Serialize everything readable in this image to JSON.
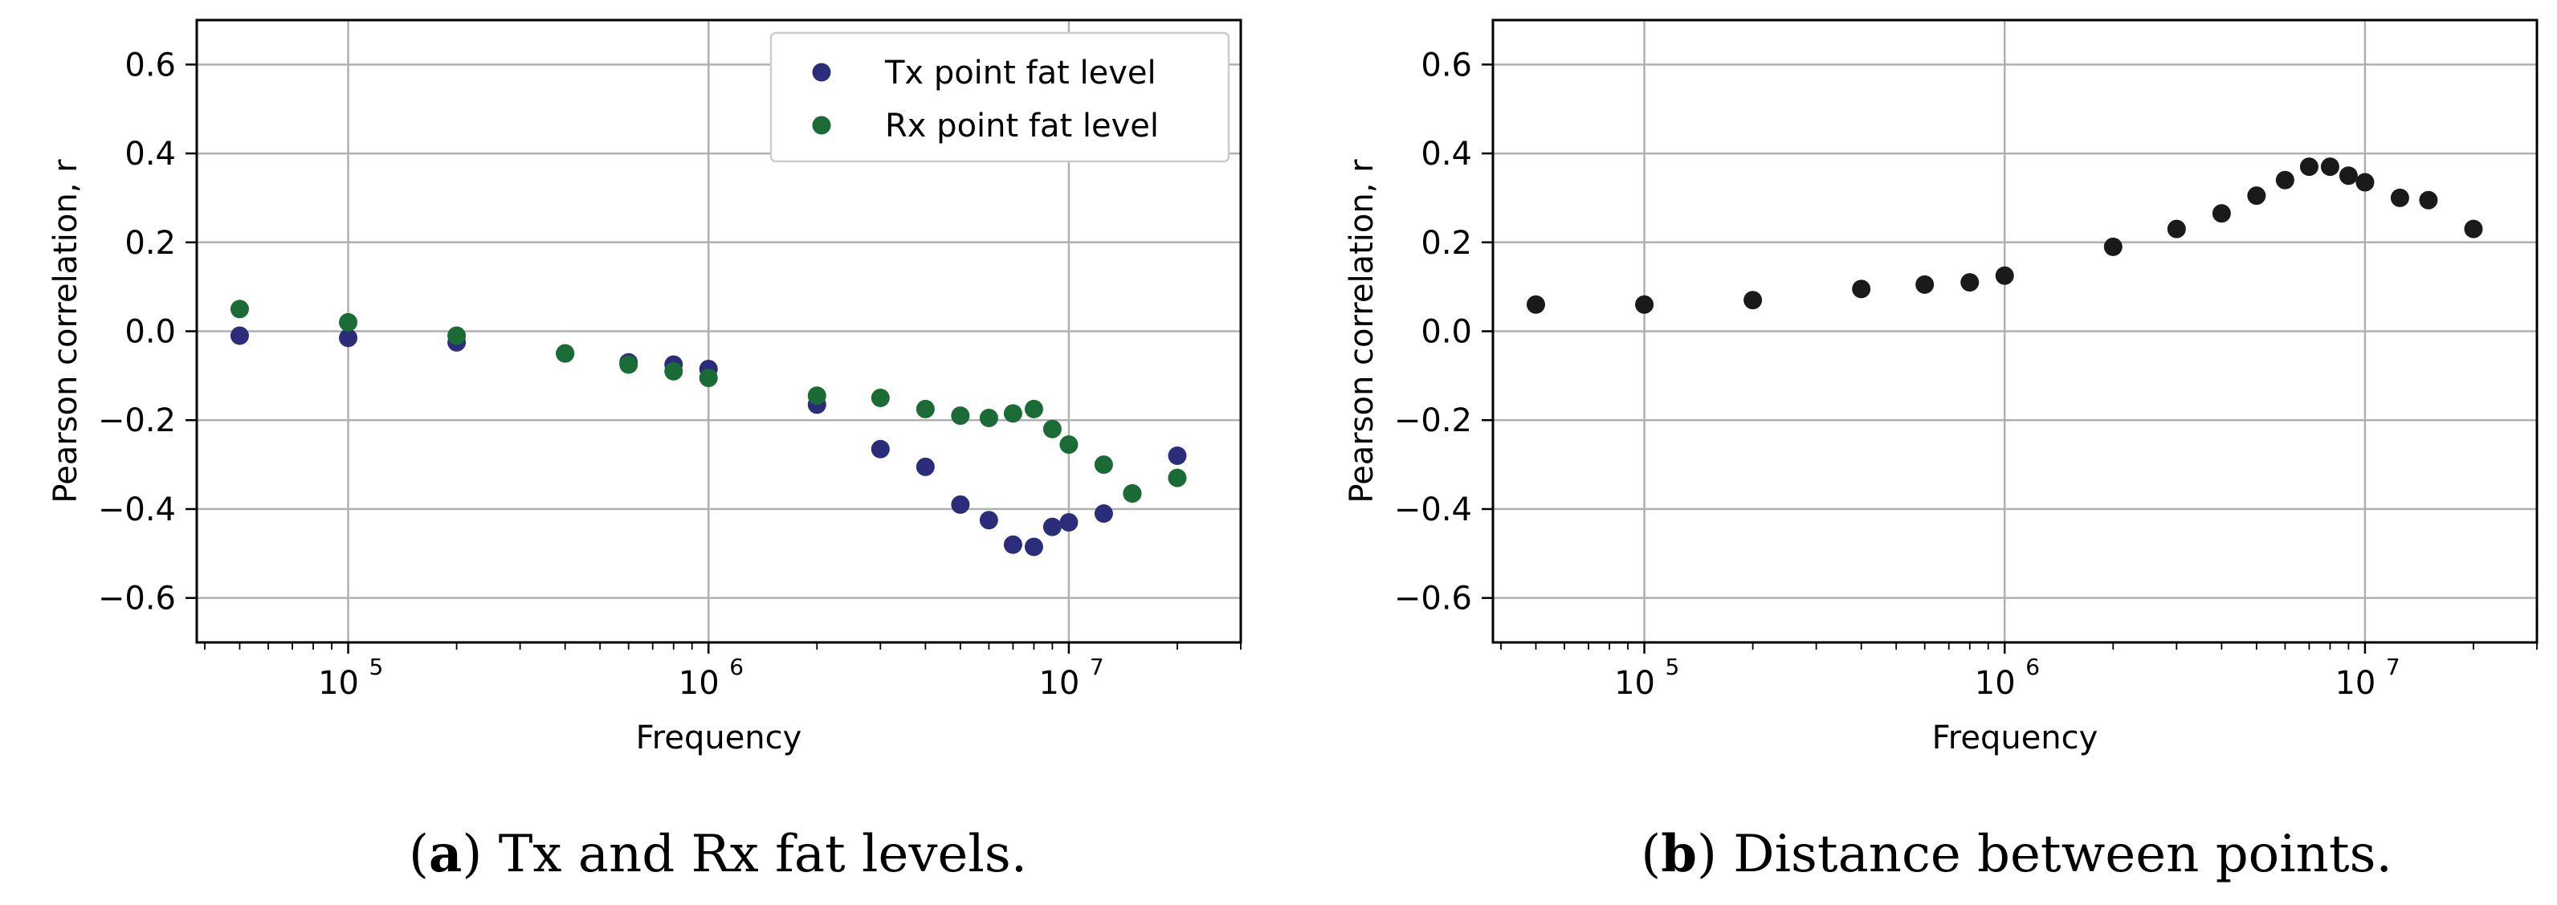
{
  "chart_data": [
    {
      "type": "scatter",
      "xscale": "log",
      "xlim": [
        38000,
        30000000
      ],
      "ylim": [
        -0.7,
        0.7
      ],
      "grid": true,
      "xlabel": "Frequency",
      "ylabel": "Pearson correlation, r",
      "yticks": [
        -0.6,
        -0.4,
        -0.2,
        0.0,
        0.2,
        0.4,
        0.6
      ],
      "ytick_labels": [
        "−0.6",
        "−0.4",
        "−0.2",
        "0.0",
        "0.2",
        "0.4",
        "0.6"
      ],
      "xticks": [
        100000,
        1000000,
        10000000
      ],
      "xtick_labels": [
        {
          "base": "10",
          "exp": "5"
        },
        {
          "base": "10",
          "exp": "6"
        },
        {
          "base": "10",
          "exp": "7"
        }
      ],
      "legend_position": "upper right",
      "caption": {
        "letter": "a",
        "text": " Tx and Rx fat levels."
      },
      "series": [
        {
          "name": "Tx point fat level",
          "color": "#2b2d7b",
          "x": [
            50000,
            100000,
            200000,
            400000,
            600000,
            800000,
            1000000,
            2000000,
            3000000,
            4000000,
            5000000,
            6000000,
            7000000,
            8000000,
            9000000,
            10000000,
            12500000,
            15000000,
            20000000
          ],
          "y": [
            -0.01,
            -0.015,
            -0.025,
            -0.05,
            -0.07,
            -0.075,
            -0.085,
            -0.165,
            -0.265,
            -0.305,
            -0.39,
            -0.425,
            -0.48,
            -0.485,
            -0.44,
            -0.43,
            -0.41,
            -0.365,
            -0.28
          ]
        },
        {
          "name": "Rx point fat level",
          "color": "#1a6b35",
          "x": [
            50000,
            100000,
            200000,
            400000,
            600000,
            800000,
            1000000,
            2000000,
            3000000,
            4000000,
            5000000,
            6000000,
            7000000,
            8000000,
            9000000,
            10000000,
            12500000,
            15000000,
            20000000
          ],
          "y": [
            0.05,
            0.02,
            -0.01,
            -0.05,
            -0.075,
            -0.09,
            -0.105,
            -0.145,
            -0.15,
            -0.175,
            -0.19,
            -0.195,
            -0.185,
            -0.175,
            -0.22,
            -0.255,
            -0.3,
            -0.365,
            -0.33
          ]
        }
      ]
    },
    {
      "type": "scatter",
      "xscale": "log",
      "xlim": [
        38000,
        30000000
      ],
      "ylim": [
        -0.7,
        0.7
      ],
      "grid": true,
      "xlabel": "Frequency",
      "ylabel": "Pearson correlation, r",
      "yticks": [
        -0.6,
        -0.4,
        -0.2,
        0.0,
        0.2,
        0.4,
        0.6
      ],
      "ytick_labels": [
        "−0.6",
        "−0.4",
        "−0.2",
        "0.0",
        "0.2",
        "0.4",
        "0.6"
      ],
      "xticks": [
        100000,
        1000000,
        10000000
      ],
      "xtick_labels": [
        {
          "base": "10",
          "exp": "5"
        },
        {
          "base": "10",
          "exp": "6"
        },
        {
          "base": "10",
          "exp": "7"
        }
      ],
      "caption": {
        "letter": "b",
        "text": " Distance between points."
      },
      "series": [
        {
          "name": "Distance between points",
          "color": "#1a1a1a",
          "x": [
            50000,
            100000,
            200000,
            400000,
            600000,
            800000,
            1000000,
            2000000,
            3000000,
            4000000,
            5000000,
            6000000,
            7000000,
            8000000,
            9000000,
            10000000,
            12500000,
            15000000,
            20000000
          ],
          "y": [
            0.06,
            0.06,
            0.07,
            0.095,
            0.105,
            0.11,
            0.125,
            0.19,
            0.23,
            0.265,
            0.305,
            0.34,
            0.37,
            0.37,
            0.35,
            0.335,
            0.3,
            0.295,
            0.23
          ]
        }
      ]
    }
  ]
}
